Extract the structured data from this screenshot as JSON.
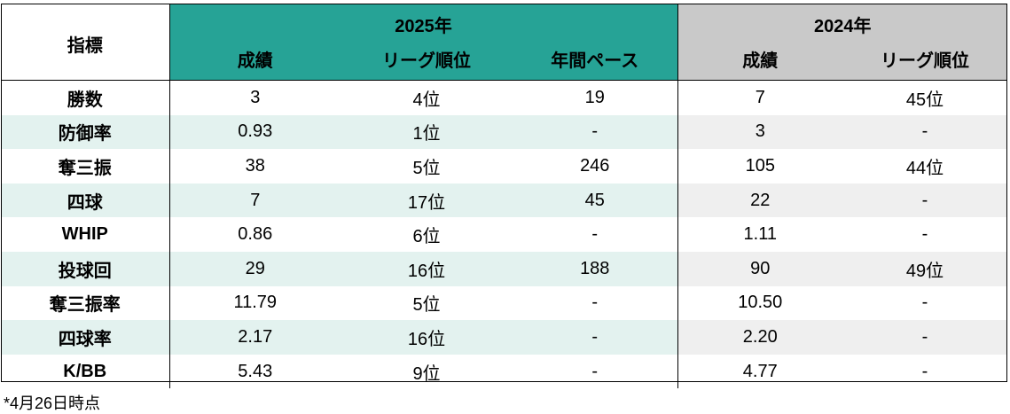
{
  "table": {
    "metric_header": "指標",
    "group_2025": "2025年",
    "group_2024": "2024年",
    "sub_2025": [
      "成績",
      "リーグ順位",
      "年間ペース"
    ],
    "sub_2024": [
      "成績",
      "リーグ順位"
    ],
    "rows": [
      {
        "metric": "勝数",
        "v25": "3",
        "rank25": "4位",
        "pace25": "19",
        "v24": "7",
        "rank24": "45位"
      },
      {
        "metric": "防御率",
        "v25": "0.93",
        "rank25": "1位",
        "pace25": "-",
        "v24": "3",
        "rank24": "-"
      },
      {
        "metric": "奪三振",
        "v25": "38",
        "rank25": "5位",
        "pace25": "246",
        "v24": "105",
        "rank24": "44位"
      },
      {
        "metric": "四球",
        "v25": "7",
        "rank25": "17位",
        "pace25": "45",
        "v24": "22",
        "rank24": "-"
      },
      {
        "metric": "WHIP",
        "v25": "0.86",
        "rank25": "6位",
        "pace25": "-",
        "v24": "1.11",
        "rank24": "-"
      },
      {
        "metric": "投球回",
        "v25": "29",
        "rank25": "16位",
        "pace25": "188",
        "v24": "90",
        "rank24": "49位"
      },
      {
        "metric": "奪三振率",
        "v25": "11.79",
        "rank25": "5位",
        "pace25": "-",
        "v24": "10.50",
        "rank24": "-"
      },
      {
        "metric": "四球率",
        "v25": "2.17",
        "rank25": "16位",
        "pace25": "-",
        "v24": "2.20",
        "rank24": "-"
      },
      {
        "metric": "K/BB",
        "v25": "5.43",
        "rank25": "9位",
        "pace25": "-",
        "v24": "4.77",
        "rank24": "-"
      }
    ]
  },
  "footnote": "*4月26日時点",
  "colors": {
    "header_2025": "#26a396",
    "header_2024": "#c9c9c9",
    "stripe_2025": "#e3f2ef",
    "stripe_2024": "#efefef"
  }
}
